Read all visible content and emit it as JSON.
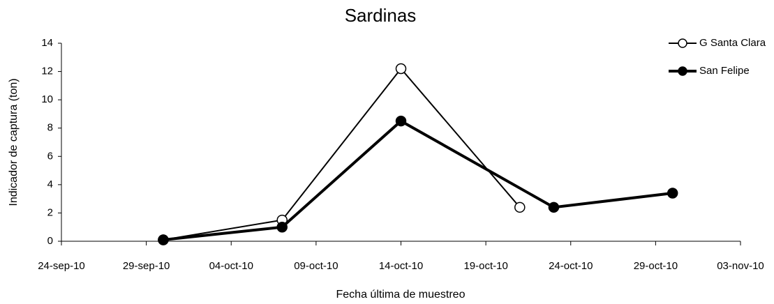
{
  "chart_data": {
    "type": "line",
    "title": "Sardinas",
    "x_label": "Fecha última de muestreo",
    "y_label": "Indicador de captura (ton)",
    "series": [
      {
        "name": "G Santa Clara",
        "color": "#000000",
        "marker": "open",
        "line_width": 2,
        "x": [
          "30-sep-10",
          "07-oct-10",
          "14-oct-10",
          "21-oct-10"
        ],
        "values": [
          0.1,
          1.5,
          12.2,
          2.4
        ]
      },
      {
        "name": "San Felipe",
        "color": "#000000",
        "marker": "filled",
        "line_width": 4,
        "x": [
          "30-sep-10",
          "07-oct-10",
          "14-oct-10",
          "23-oct-10",
          "30-oct-10"
        ],
        "values": [
          0.1,
          1.0,
          8.5,
          2.4,
          3.4
        ]
      }
    ],
    "xlim": [
      "24-sep-10",
      "03-nov-10"
    ],
    "xticks": [
      "24-sep-10",
      "29-sep-10",
      "04-oct-10",
      "09-oct-10",
      "14-oct-10",
      "19-oct-10",
      "24-oct-10",
      "29-oct-10",
      "03-nov-10"
    ],
    "ylim": [
      0,
      14
    ],
    "yticks": [
      0,
      2,
      4,
      6,
      8,
      10,
      12,
      14
    ],
    "legend": "top-right"
  }
}
